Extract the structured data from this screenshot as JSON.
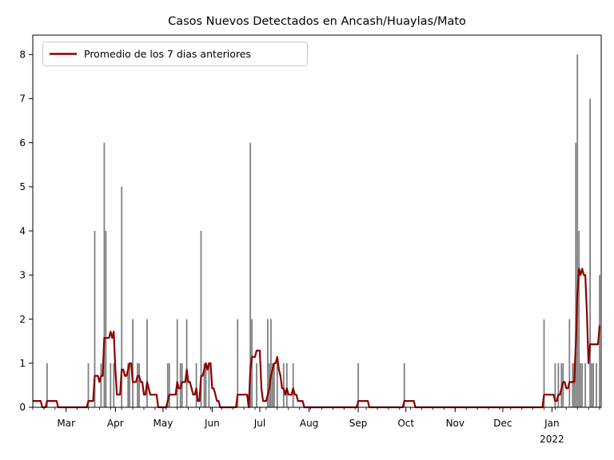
{
  "chart_data": {
    "type": "bar",
    "title": "Casos Nuevos Detectados en Ancash/Huaylas/Mato",
    "legend": {
      "label": "Promedio de los 7 dias anteriores",
      "position": "upper left"
    },
    "grid": false,
    "background_color": "#ffffff",
    "x_axis": {
      "start": "2021-02-08",
      "end": "2022-02-01",
      "minor_tick_interval_days": 7,
      "month_ticks": [
        {
          "label": "Mar",
          "date": "2021-03-01"
        },
        {
          "label": "Apr",
          "date": "2021-04-01"
        },
        {
          "label": "May",
          "date": "2021-05-01"
        },
        {
          "label": "Jun",
          "date": "2021-06-01"
        },
        {
          "label": "Jul",
          "date": "2021-07-01"
        },
        {
          "label": "Aug",
          "date": "2021-08-01"
        },
        {
          "label": "Sep",
          "date": "2021-09-01"
        },
        {
          "label": "Oct",
          "date": "2021-10-01"
        },
        {
          "label": "Nov",
          "date": "2021-11-01"
        },
        {
          "label": "Dec",
          "date": "2021-12-01"
        },
        {
          "label": "Jan",
          "date": "2022-01-01",
          "year_label": "2022"
        }
      ]
    },
    "y_axis": {
      "min": 0,
      "max_tick": 8,
      "display_max": 8.44,
      "ticks": [
        0,
        1,
        2,
        3,
        4,
        5,
        6,
        7,
        8
      ]
    },
    "series": [
      {
        "name": "casos-nuevos-diarios",
        "type": "bar",
        "color": "#808080",
        "bar_width_days": 0.9,
        "note": "daily new detected cases; the 2021-02-07 case lies left of the visible axis range and only influences the average line",
        "points": [
          {
            "date": "2021-02-07",
            "cases": 1
          },
          {
            "date": "2021-02-17",
            "cases": 1
          },
          {
            "date": "2021-03-15",
            "cases": 1
          },
          {
            "date": "2021-03-19",
            "cases": 4
          },
          {
            "date": "2021-03-23",
            "cases": 1
          },
          {
            "date": "2021-03-25",
            "cases": 6
          },
          {
            "date": "2021-03-26",
            "cases": 4
          },
          {
            "date": "2021-03-29",
            "cases": 1
          },
          {
            "date": "2021-03-31",
            "cases": 1
          },
          {
            "date": "2021-04-05",
            "cases": 5
          },
          {
            "date": "2021-04-09",
            "cases": 1
          },
          {
            "date": "2021-04-10",
            "cases": 1
          },
          {
            "date": "2021-04-12",
            "cases": 2
          },
          {
            "date": "2021-04-15",
            "cases": 1
          },
          {
            "date": "2021-04-16",
            "cases": 1
          },
          {
            "date": "2021-04-21",
            "cases": 2
          },
          {
            "date": "2021-05-04",
            "cases": 1
          },
          {
            "date": "2021-05-05",
            "cases": 1
          },
          {
            "date": "2021-05-10",
            "cases": 2
          },
          {
            "date": "2021-05-12",
            "cases": 1
          },
          {
            "date": "2021-05-13",
            "cases": 1
          },
          {
            "date": "2021-05-16",
            "cases": 2
          },
          {
            "date": "2021-05-22",
            "cases": 1
          },
          {
            "date": "2021-05-25",
            "cases": 4
          },
          {
            "date": "2021-05-27",
            "cases": 1
          },
          {
            "date": "2021-05-28",
            "cases": 1
          },
          {
            "date": "2021-05-30",
            "cases": 1
          },
          {
            "date": "2021-06-17",
            "cases": 2
          },
          {
            "date": "2021-06-25",
            "cases": 6
          },
          {
            "date": "2021-06-26",
            "cases": 2
          },
          {
            "date": "2021-06-29",
            "cases": 1
          },
          {
            "date": "2021-07-06",
            "cases": 2
          },
          {
            "date": "2021-07-07",
            "cases": 1
          },
          {
            "date": "2021-07-08",
            "cases": 2
          },
          {
            "date": "2021-07-09",
            "cases": 1
          },
          {
            "date": "2021-07-10",
            "cases": 1
          },
          {
            "date": "2021-07-12",
            "cases": 1
          },
          {
            "date": "2021-07-16",
            "cases": 1
          },
          {
            "date": "2021-07-18",
            "cases": 1
          },
          {
            "date": "2021-07-22",
            "cases": 1
          },
          {
            "date": "2021-09-01",
            "cases": 1
          },
          {
            "date": "2021-09-30",
            "cases": 1
          },
          {
            "date": "2021-12-27",
            "cases": 2
          },
          {
            "date": "2022-01-03",
            "cases": 1
          },
          {
            "date": "2022-01-05",
            "cases": 1
          },
          {
            "date": "2022-01-07",
            "cases": 1
          },
          {
            "date": "2022-01-08",
            "cases": 1
          },
          {
            "date": "2022-01-12",
            "cases": 2
          },
          {
            "date": "2022-01-14",
            "cases": 1
          },
          {
            "date": "2022-01-15",
            "cases": 1
          },
          {
            "date": "2022-01-16",
            "cases": 6
          },
          {
            "date": "2022-01-17",
            "cases": 8
          },
          {
            "date": "2022-01-18",
            "cases": 4
          },
          {
            "date": "2022-01-19",
            "cases": 1
          },
          {
            "date": "2022-01-20",
            "cases": 1
          },
          {
            "date": "2022-01-22",
            "cases": 1
          },
          {
            "date": "2022-01-25",
            "cases": 7
          },
          {
            "date": "2022-01-26",
            "cases": 1
          },
          {
            "date": "2022-01-27",
            "cases": 1
          },
          {
            "date": "2022-01-29",
            "cases": 1
          },
          {
            "date": "2022-01-31",
            "cases": 3
          }
        ]
      },
      {
        "name": "Promedio de los 7 dias anteriores",
        "type": "line",
        "color": "#8b0000",
        "derived": "rolling mean of daily cases over the 7-day window ending on each day",
        "window_days": 7,
        "start": "2021-02-08",
        "end": "2022-01-31"
      }
    ]
  },
  "colors": {
    "bar": "#808080",
    "line": "#8b0000",
    "axis": "#000000",
    "legend_border": "#cbcbcb",
    "legend_background": "#ffffff"
  }
}
